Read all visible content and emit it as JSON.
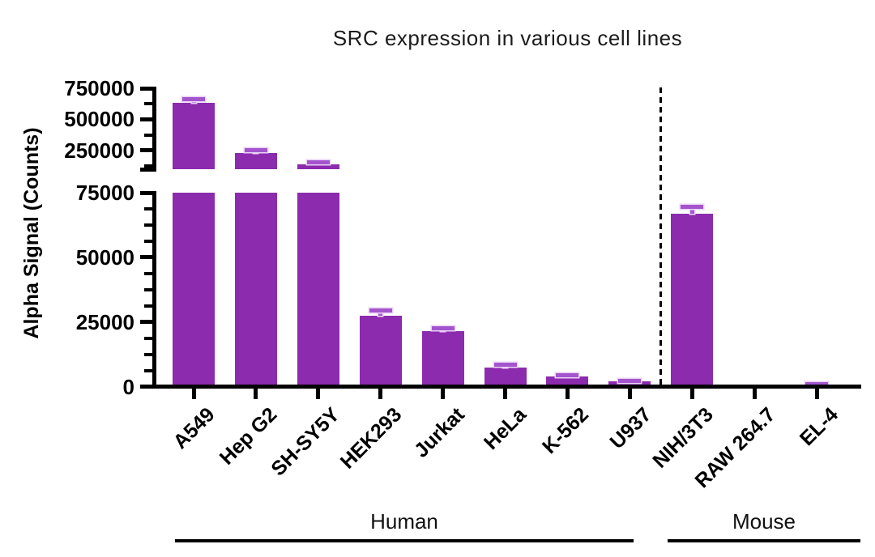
{
  "chart_data": {
    "type": "bar",
    "title": "SRC expression in various cell lines",
    "ylabel": "Alpha Signal (Counts)",
    "xlabel": "",
    "grid": false,
    "legend": false,
    "bar_color": "#8C2BAE",
    "error_bar_color": "#A455CE",
    "error_bar_edge_color": "#EAD2F5",
    "axis_color": "#000000",
    "y_axis_break": {
      "lower_segment_min": 0,
      "lower_segment_max": 75000,
      "upper_segment_min": 100000,
      "upper_segment_max": 750000
    },
    "y_ticks": {
      "lower_majors": [
        {
          "value": 0,
          "label": "0"
        },
        {
          "value": 25000,
          "label": "25000"
        },
        {
          "value": 50000,
          "label": "50000"
        },
        {
          "value": 75000,
          "label": "75000"
        }
      ],
      "lower_minor_step": 6250,
      "upper_majors": [
        {
          "value": 250000,
          "label": "250000"
        },
        {
          "value": 500000,
          "label": "500000"
        },
        {
          "value": 750000,
          "label": "750000"
        }
      ],
      "upper_minors": [
        125000,
        375000,
        625000
      ]
    },
    "bars": [
      {
        "label": "A549",
        "value": 630000,
        "error": 35000,
        "group": "Human"
      },
      {
        "label": "Hep G2",
        "value": 230000,
        "error": 20000,
        "group": "Human"
      },
      {
        "label": "SH-SY5Y",
        "value": 140000,
        "error": 15000,
        "group": "Human"
      },
      {
        "label": "HEK293",
        "value": 27500,
        "error": 2000,
        "group": "Human"
      },
      {
        "label": "Jurkat",
        "value": 21500,
        "error": 1200,
        "group": "Human"
      },
      {
        "label": "HeLa",
        "value": 7500,
        "error": 900,
        "group": "Human"
      },
      {
        "label": "K-562",
        "value": 4000,
        "error": 500,
        "group": "Human"
      },
      {
        "label": "U937",
        "value": 2000,
        "error": 300,
        "group": "Human"
      },
      {
        "label": "NIH/3T3",
        "value": 67000,
        "error": 2500,
        "group": "Mouse"
      },
      {
        "label": "RAW 264.7",
        "value": 150,
        "error": 100,
        "group": "Mouse"
      },
      {
        "label": "EL-4",
        "value": 700,
        "error": 300,
        "group": "Mouse"
      }
    ],
    "groups": [
      {
        "label": "Human"
      },
      {
        "label": "Mouse"
      }
    ],
    "separator": "dashed vertical line between U937 and NIH/3T3"
  }
}
